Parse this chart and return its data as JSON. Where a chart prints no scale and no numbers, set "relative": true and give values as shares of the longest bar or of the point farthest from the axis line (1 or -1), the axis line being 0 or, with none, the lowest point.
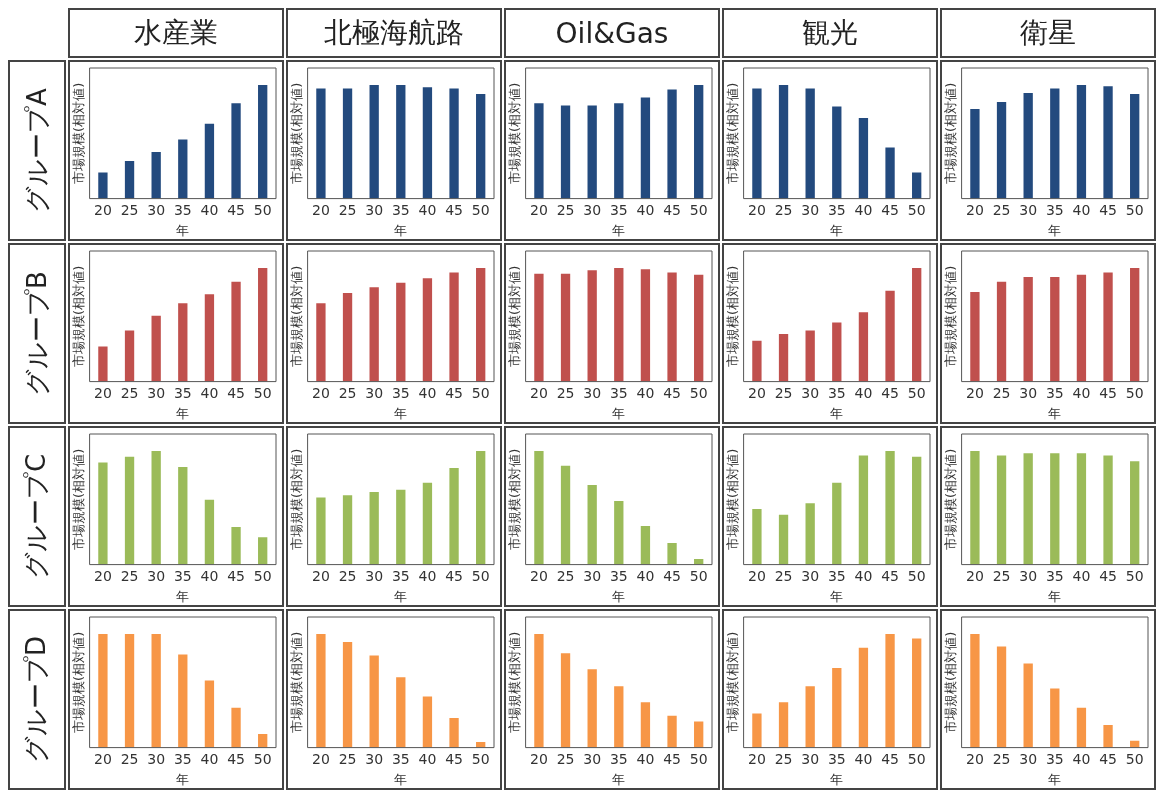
{
  "chart_data": [
    {
      "type": "bar",
      "title": "水産業",
      "annotations": [
        "グループA"
      ],
      "relative": true,
      "xlabel": "年",
      "ylabel": "市場規模(相対値)",
      "categories": [
        "20",
        "25",
        "30",
        "35",
        "40",
        "45",
        "50"
      ],
      "color": "#234a7e",
      "values": [
        0.23,
        0.33,
        0.41,
        0.52,
        0.66,
        0.84,
        1
      ]
    },
    {
      "type": "bar",
      "title": "北極海航路",
      "relative": true,
      "xlabel": "年",
      "ylabel": "市場規模(相対値)",
      "categories": [
        "20",
        "25",
        "30",
        "35",
        "40",
        "45",
        "50"
      ],
      "color": "#234a7e",
      "values": [
        0.97,
        0.97,
        1,
        1,
        0.98,
        0.97,
        0.92
      ]
    },
    {
      "type": "bar",
      "title": "Oil&Gas",
      "relative": true,
      "xlabel": "年",
      "ylabel": "市場規模(相対値)",
      "categories": [
        "20",
        "25",
        "30",
        "35",
        "40",
        "45",
        "50"
      ],
      "color": "#234a7e",
      "values": [
        0.84,
        0.82,
        0.82,
        0.84,
        0.89,
        0.96,
        1
      ]
    },
    {
      "type": "bar",
      "title": "観光",
      "relative": true,
      "xlabel": "年",
      "ylabel": "市場規模(相対値)",
      "categories": [
        "20",
        "25",
        "30",
        "35",
        "40",
        "45",
        "50"
      ],
      "color": "#234a7e",
      "values": [
        0.97,
        1,
        0.97,
        0.81,
        0.71,
        0.45,
        0.23
      ]
    },
    {
      "type": "bar",
      "title": "衛星",
      "relative": true,
      "xlabel": "年",
      "ylabel": "市場規模(相対値)",
      "categories": [
        "20",
        "25",
        "30",
        "35",
        "40",
        "45",
        "50"
      ],
      "color": "#234a7e",
      "values": [
        0.79,
        0.85,
        0.93,
        0.97,
        1,
        0.99,
        0.92
      ]
    },
    {
      "type": "bar",
      "annotations": [
        "グループB"
      ],
      "relative": true,
      "xlabel": "年",
      "ylabel": "市場規模(相対値)",
      "categories": [
        "20",
        "25",
        "30",
        "35",
        "40",
        "45",
        "50"
      ],
      "color": "#c0504d",
      "values": [
        0.31,
        0.45,
        0.58,
        0.69,
        0.77,
        0.88,
        1
      ]
    },
    {
      "type": "bar",
      "relative": true,
      "xlabel": "年",
      "ylabel": "市場規模(相対値)",
      "categories": [
        "20",
        "25",
        "30",
        "35",
        "40",
        "45",
        "50"
      ],
      "color": "#c0504d",
      "values": [
        0.69,
        0.78,
        0.83,
        0.87,
        0.91,
        0.96,
        1
      ]
    },
    {
      "type": "bar",
      "relative": true,
      "xlabel": "年",
      "ylabel": "市場規模(相対値)",
      "categories": [
        "20",
        "25",
        "30",
        "35",
        "40",
        "45",
        "50"
      ],
      "color": "#c0504d",
      "values": [
        0.95,
        0.95,
        0.98,
        1,
        0.99,
        0.96,
        0.94
      ]
    },
    {
      "type": "bar",
      "relative": true,
      "xlabel": "年",
      "ylabel": "市場規模(相対値)",
      "categories": [
        "20",
        "25",
        "30",
        "35",
        "40",
        "45",
        "50"
      ],
      "color": "#c0504d",
      "values": [
        0.36,
        0.42,
        0.45,
        0.52,
        0.61,
        0.8,
        1
      ]
    },
    {
      "type": "bar",
      "relative": true,
      "xlabel": "年",
      "ylabel": "市場規模(相対値)",
      "categories": [
        "20",
        "25",
        "30",
        "35",
        "40",
        "45",
        "50"
      ],
      "color": "#c0504d",
      "values": [
        0.79,
        0.88,
        0.92,
        0.92,
        0.94,
        0.96,
        1
      ]
    },
    {
      "type": "bar",
      "annotations": [
        "グループC"
      ],
      "relative": true,
      "xlabel": "年",
      "ylabel": "市場規模(相対値)",
      "categories": [
        "20",
        "25",
        "30",
        "35",
        "40",
        "45",
        "50"
      ],
      "color": "#9bbb59",
      "values": [
        0.9,
        0.95,
        1,
        0.86,
        0.57,
        0.33,
        0.24
      ]
    },
    {
      "type": "bar",
      "relative": true,
      "xlabel": "年",
      "ylabel": "市場規模(相対値)",
      "categories": [
        "20",
        "25",
        "30",
        "35",
        "40",
        "45",
        "50"
      ],
      "color": "#9bbb59",
      "values": [
        0.59,
        0.61,
        0.64,
        0.66,
        0.72,
        0.85,
        1
      ]
    },
    {
      "type": "bar",
      "relative": true,
      "xlabel": "年",
      "ylabel": "市場規模(相対値)",
      "categories": [
        "20",
        "25",
        "30",
        "35",
        "40",
        "45",
        "50"
      ],
      "color": "#9bbb59",
      "values": [
        1,
        0.87,
        0.7,
        0.56,
        0.34,
        0.19,
        0.05
      ]
    },
    {
      "type": "bar",
      "relative": true,
      "xlabel": "年",
      "ylabel": "市場規模(相対値)",
      "categories": [
        "20",
        "25",
        "30",
        "35",
        "40",
        "45",
        "50"
      ],
      "color": "#9bbb59",
      "values": [
        0.49,
        0.44,
        0.54,
        0.72,
        0.96,
        1,
        0.95
      ]
    },
    {
      "type": "bar",
      "relative": true,
      "xlabel": "年",
      "ylabel": "市場規模(相対値)",
      "categories": [
        "20",
        "25",
        "30",
        "35",
        "40",
        "45",
        "50"
      ],
      "color": "#9bbb59",
      "values": [
        1,
        0.96,
        0.98,
        0.98,
        0.98,
        0.96,
        0.91
      ]
    },
    {
      "type": "bar",
      "annotations": [
        "グループD"
      ],
      "relative": true,
      "xlabel": "年",
      "ylabel": "市場規模(相対値)",
      "categories": [
        "20",
        "25",
        "30",
        "35",
        "40",
        "45",
        "50"
      ],
      "color": "#f79646",
      "values": [
        1,
        1,
        1,
        0.82,
        0.59,
        0.35,
        0.12
      ]
    },
    {
      "type": "bar",
      "relative": true,
      "xlabel": "年",
      "ylabel": "市場規模(相対値)",
      "categories": [
        "20",
        "25",
        "30",
        "35",
        "40",
        "45",
        "50"
      ],
      "color": "#f79646",
      "values": [
        1,
        0.93,
        0.81,
        0.62,
        0.45,
        0.26,
        0.05
      ]
    },
    {
      "type": "bar",
      "relative": true,
      "xlabel": "年",
      "ylabel": "市場規模(相対値)",
      "categories": [
        "20",
        "25",
        "30",
        "35",
        "40",
        "45",
        "50"
      ],
      "color": "#f79646",
      "values": [
        1,
        0.83,
        0.69,
        0.54,
        0.4,
        0.28,
        0.23
      ]
    },
    {
      "type": "bar",
      "relative": true,
      "xlabel": "年",
      "ylabel": "市場規模(相対値)",
      "categories": [
        "20",
        "25",
        "30",
        "35",
        "40",
        "45",
        "50"
      ],
      "color": "#f79646",
      "values": [
        0.3,
        0.4,
        0.54,
        0.7,
        0.88,
        1,
        0.96
      ]
    },
    {
      "type": "bar",
      "relative": true,
      "xlabel": "年",
      "ylabel": "市場規模(相対値)",
      "categories": [
        "20",
        "25",
        "30",
        "35",
        "40",
        "45",
        "50"
      ],
      "color": "#f79646",
      "values": [
        1,
        0.89,
        0.74,
        0.52,
        0.35,
        0.2,
        0.06
      ]
    }
  ]
}
